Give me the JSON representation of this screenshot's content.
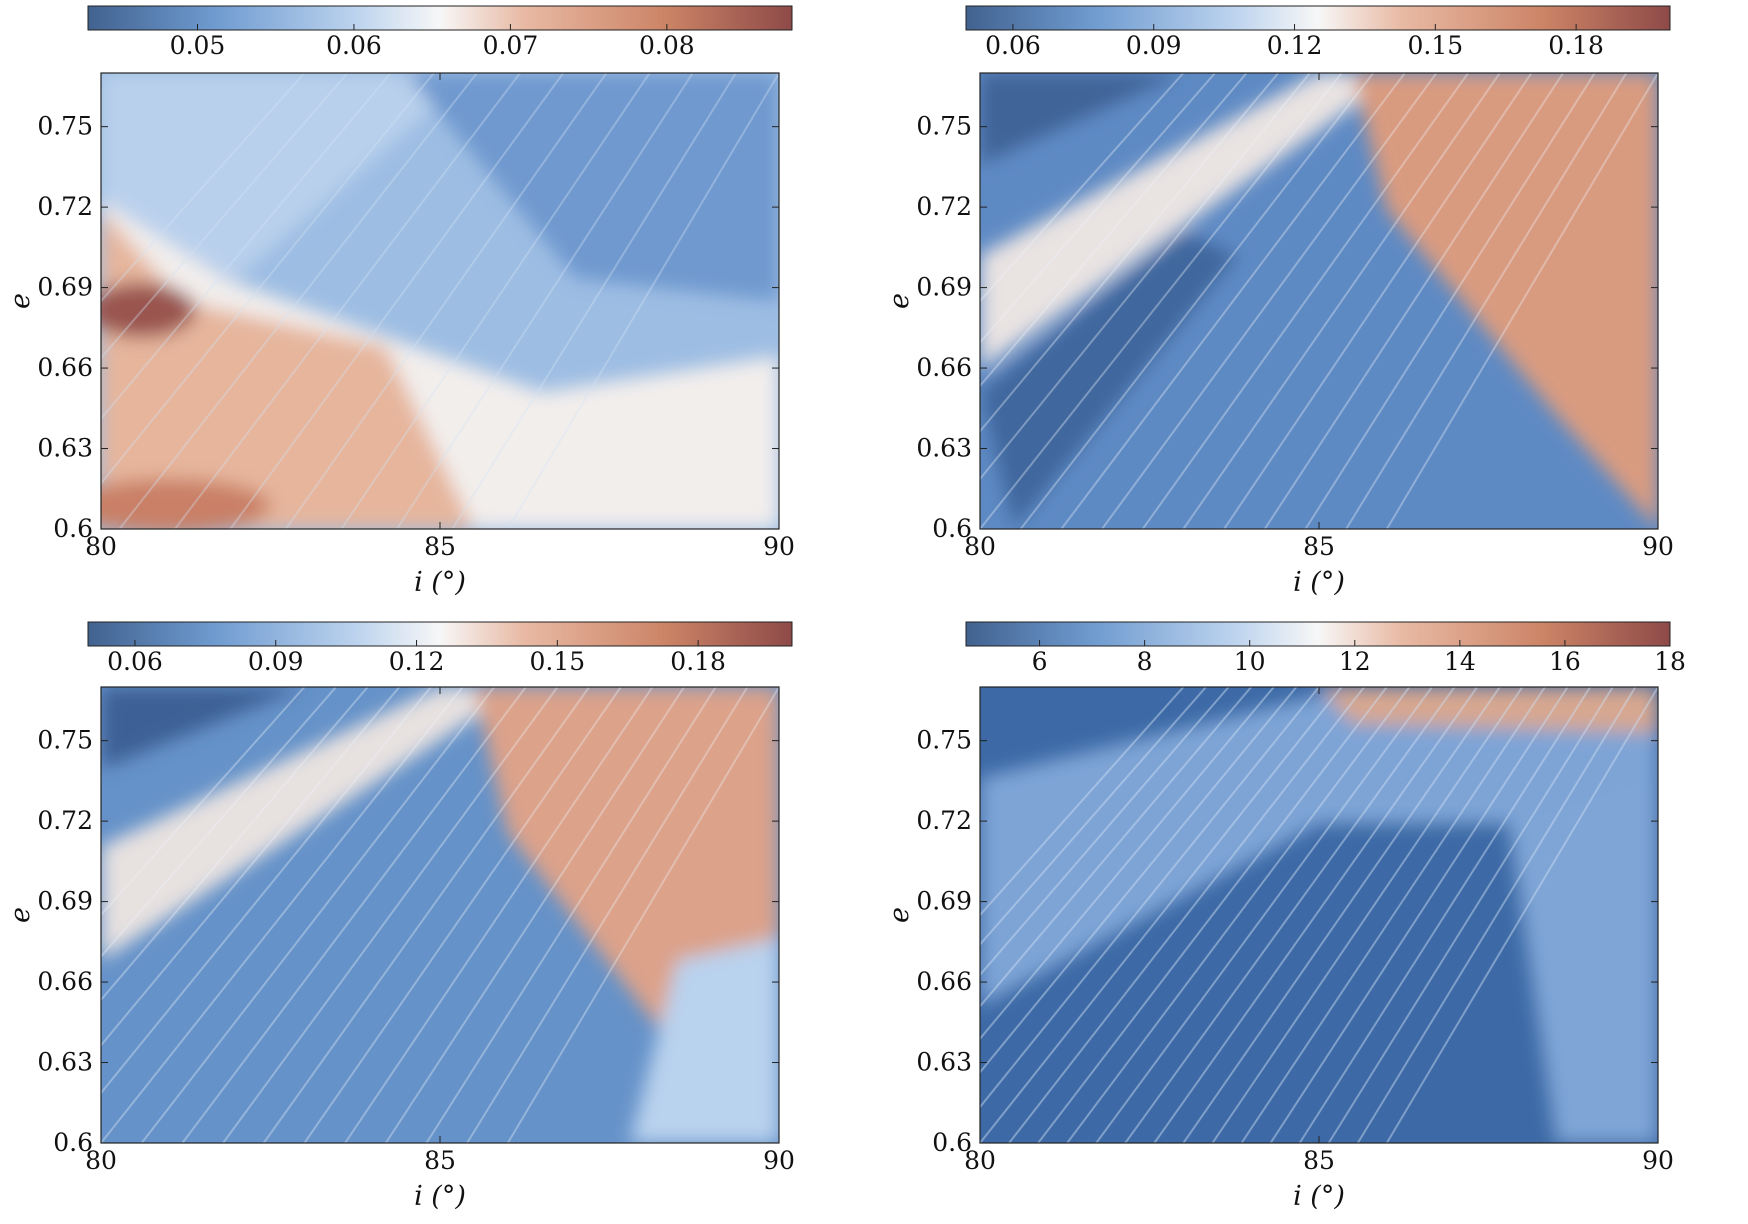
{
  "colors": {
    "dark_blue": "#3a5f98",
    "mid_blue": "#6f9bd0",
    "light_blue": "#bcd3ee",
    "white": "#f7f7f7",
    "light_red": "#e8b9a3",
    "mid_red": "#cc8466",
    "dark_red": "#8e4a48"
  },
  "chart_data": [
    {
      "type": "heatmap",
      "xlabel": "i (°)",
      "ylabel": "e",
      "xlim": [
        80,
        90
      ],
      "ylim": [
        0.6,
        0.77
      ],
      "x_ticks": [
        "80",
        "85",
        "90"
      ],
      "y_ticks": [
        "0.6",
        "0.63",
        "0.66",
        "0.69",
        "0.72",
        "0.75"
      ],
      "colorbar": {
        "range": [
          0.043,
          0.088
        ],
        "ticks": [
          "0.05",
          "0.06",
          "0.07",
          "0.08"
        ]
      }
    },
    {
      "type": "heatmap",
      "xlabel": "i (°)",
      "ylabel": "e",
      "xlim": [
        80,
        90
      ],
      "ylim": [
        0.6,
        0.77
      ],
      "x_ticks": [
        "80",
        "85",
        "90"
      ],
      "y_ticks": [
        "0.6",
        "0.63",
        "0.66",
        "0.69",
        "0.72",
        "0.75"
      ],
      "colorbar": {
        "range": [
          0.05,
          0.2
        ],
        "ticks": [
          "0.06",
          "0.09",
          "0.12",
          "0.15",
          "0.18"
        ]
      }
    },
    {
      "type": "heatmap",
      "xlabel": "i (°)",
      "ylabel": "e",
      "xlim": [
        80,
        90
      ],
      "ylim": [
        0.6,
        0.77
      ],
      "x_ticks": [
        "80",
        "85",
        "90"
      ],
      "y_ticks": [
        "0.6",
        "0.63",
        "0.66",
        "0.69",
        "0.72",
        "0.75"
      ],
      "colorbar": {
        "range": [
          0.05,
          0.2
        ],
        "ticks": [
          "0.06",
          "0.09",
          "0.12",
          "0.15",
          "0.18"
        ]
      }
    },
    {
      "type": "heatmap",
      "xlabel": "i (°)",
      "ylabel": "e",
      "xlim": [
        80,
        90
      ],
      "ylim": [
        0.6,
        0.77
      ],
      "x_ticks": [
        "80",
        "85",
        "90"
      ],
      "y_ticks": [
        "0.6",
        "0.63",
        "0.66",
        "0.69",
        "0.72",
        "0.75"
      ],
      "colorbar": {
        "range": [
          4.6,
          18
        ],
        "ticks": [
          "6",
          "8",
          "10",
          "12",
          "14",
          "16",
          "18"
        ]
      }
    }
  ]
}
